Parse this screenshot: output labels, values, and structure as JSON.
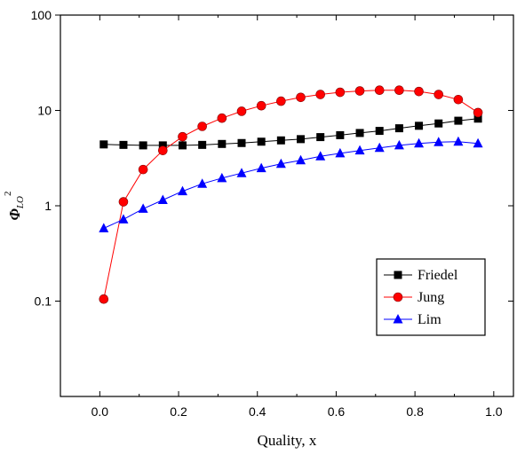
{
  "chart_data": {
    "type": "line",
    "title": "",
    "xlabel": "Quality, x",
    "ylabel_main": "Φ",
    "ylabel_sub": "LO",
    "ylabel_sup": "2",
    "xlim": [
      -0.1,
      1.05
    ],
    "ylim": [
      0.01,
      100
    ],
    "yscale": "log",
    "grid": false,
    "legend_position": "lower-right",
    "x_ticks": [
      0.0,
      0.2,
      0.4,
      0.6,
      0.8,
      1.0
    ],
    "x_tick_labels": [
      "0.0",
      "0.2",
      "0.4",
      "0.6",
      "0.8",
      "1.0"
    ],
    "y_ticks": [
      0.1,
      1,
      10,
      100
    ],
    "y_tick_labels": [
      "0.1",
      "1",
      "10",
      "100"
    ],
    "x": [
      0.01,
      0.06,
      0.11,
      0.16,
      0.21,
      0.26,
      0.31,
      0.36,
      0.41,
      0.46,
      0.51,
      0.56,
      0.61,
      0.66,
      0.71,
      0.76,
      0.81,
      0.86,
      0.91,
      0.96
    ],
    "series": [
      {
        "name": "Friedel",
        "marker": "square",
        "color": "#000000",
        "values": [
          4.4,
          4.35,
          4.3,
          4.3,
          4.3,
          4.35,
          4.45,
          4.55,
          4.7,
          4.85,
          5.0,
          5.25,
          5.5,
          5.8,
          6.1,
          6.5,
          6.9,
          7.3,
          7.8,
          8.2
        ]
      },
      {
        "name": "Jung",
        "marker": "circle",
        "color": "#ff0000",
        "values": [
          0.105,
          1.1,
          2.4,
          3.8,
          5.3,
          6.8,
          8.3,
          9.8,
          11.2,
          12.5,
          13.7,
          14.7,
          15.5,
          16.0,
          16.3,
          16.3,
          15.8,
          14.7,
          13.0,
          9.5
        ]
      },
      {
        "name": "Lim",
        "marker": "triangle",
        "color": "#0000ff",
        "values": [
          0.58,
          0.72,
          0.93,
          1.15,
          1.42,
          1.7,
          1.95,
          2.2,
          2.48,
          2.75,
          3.0,
          3.3,
          3.55,
          3.8,
          4.05,
          4.3,
          4.5,
          4.65,
          4.7,
          4.5
        ]
      }
    ]
  }
}
